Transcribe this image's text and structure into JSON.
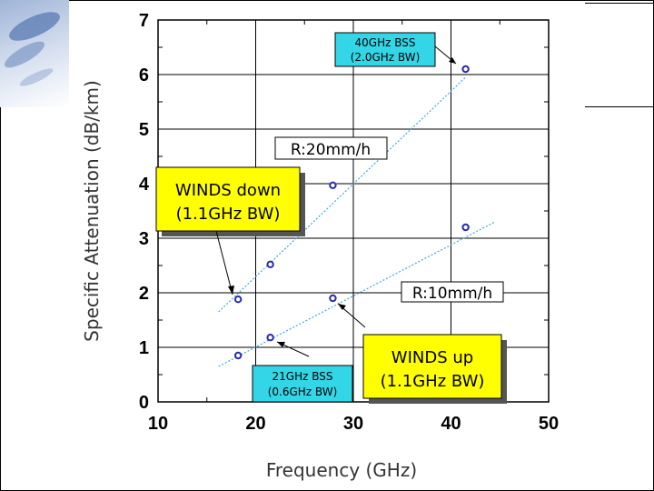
{
  "chart_data": {
    "type": "scatter",
    "xlabel": "Frequency (GHz)",
    "ylabel": "Specific Attenuation (dB/km)",
    "xlim": [
      10,
      50
    ],
    "ylim": [
      0,
      7
    ],
    "x_ticks": [
      "10",
      "20",
      "30",
      "40",
      "50"
    ],
    "y_ticks": [
      "0",
      "1",
      "2",
      "3",
      "4",
      "5",
      "6",
      "7"
    ],
    "grid": true,
    "series": [
      {
        "name": "R:20mm/h",
        "x": [
          18.2,
          21.5,
          27.9,
          41.5
        ],
        "y": [
          1.88,
          2.52,
          3.97,
          6.1
        ],
        "trend": {
          "x": [
            16.2,
            41.5
          ],
          "y": [
            1.65,
            5.95
          ]
        }
      },
      {
        "name": "R:10mm/h",
        "x": [
          18.2,
          21.5,
          27.9,
          41.5
        ],
        "y": [
          0.85,
          1.18,
          1.9,
          3.2
        ],
        "trend": {
          "x": [
            16.2,
            44.5
          ],
          "y": [
            0.65,
            3.3
          ]
        }
      }
    ],
    "annotations": [
      {
        "line1": "40GHz BSS",
        "line2": "(2.0GHz BW)",
        "style": "cyan"
      },
      {
        "line1": "WINDS down",
        "line2": "(1.1GHz BW)",
        "style": "yellow"
      },
      {
        "line1": "21GHz BSS",
        "line2": "(0.6GHz BW)",
        "style": "cyan"
      },
      {
        "line1": "WINDS up",
        "line2": "(1.1GHz BW)",
        "style": "yellow"
      }
    ],
    "colors": {
      "marker": "#2a2ab0",
      "trend": "#3aa8e0",
      "cyan_box": "#33d6e6",
      "yellow_box": "#ffff00"
    }
  }
}
